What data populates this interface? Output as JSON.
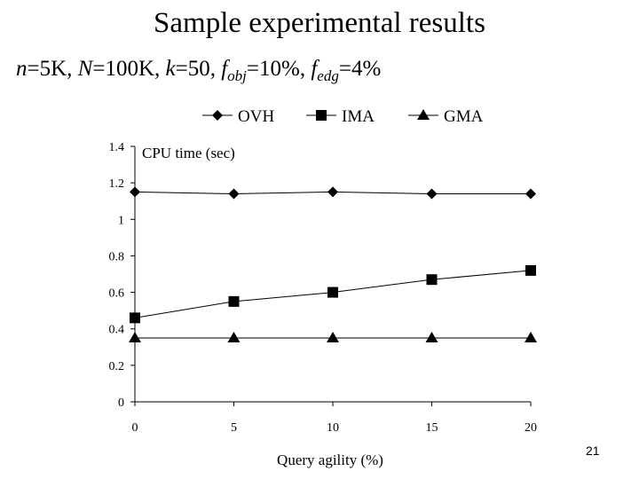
{
  "slide": {
    "title": "Sample experimental results",
    "params": [
      {
        "var": "n",
        "sub": "",
        "value": "=5K, "
      },
      {
        "var": "N",
        "sub": "",
        "value": "=100K, "
      },
      {
        "var": "k",
        "sub": "",
        "value": "=50, "
      },
      {
        "var": "f",
        "sub": "obj",
        "value": "=10%, "
      },
      {
        "var": "f",
        "sub": "edg",
        "value": "=4%"
      }
    ],
    "page_number": "21"
  },
  "chart_data": {
    "type": "line",
    "title": "",
    "ylabel": "CPU time (sec)",
    "xlabel": "Query agility (%)",
    "x": [
      0,
      5,
      10,
      15,
      20
    ],
    "x_tick_labels": [
      "0",
      "5",
      "10",
      "15",
      "20"
    ],
    "ylim": [
      0,
      1.4
    ],
    "y_ticks": [
      0,
      0.2,
      0.4,
      0.6,
      0.8,
      1,
      1.2,
      1.4
    ],
    "y_tick_labels": [
      "0",
      "0.2",
      "0.4",
      "0.6",
      "0.8",
      "1",
      "1.2",
      "1.4"
    ],
    "grid": false,
    "legend_position": "top",
    "series": [
      {
        "name": "OVH",
        "marker": "diamond",
        "values": [
          1.15,
          1.14,
          1.15,
          1.14,
          1.14
        ]
      },
      {
        "name": "IMA",
        "marker": "square",
        "values": [
          0.46,
          0.55,
          0.6,
          0.67,
          0.72
        ]
      },
      {
        "name": "GMA",
        "marker": "triangle",
        "values": [
          0.35,
          0.35,
          0.35,
          0.35,
          0.35
        ]
      }
    ]
  }
}
